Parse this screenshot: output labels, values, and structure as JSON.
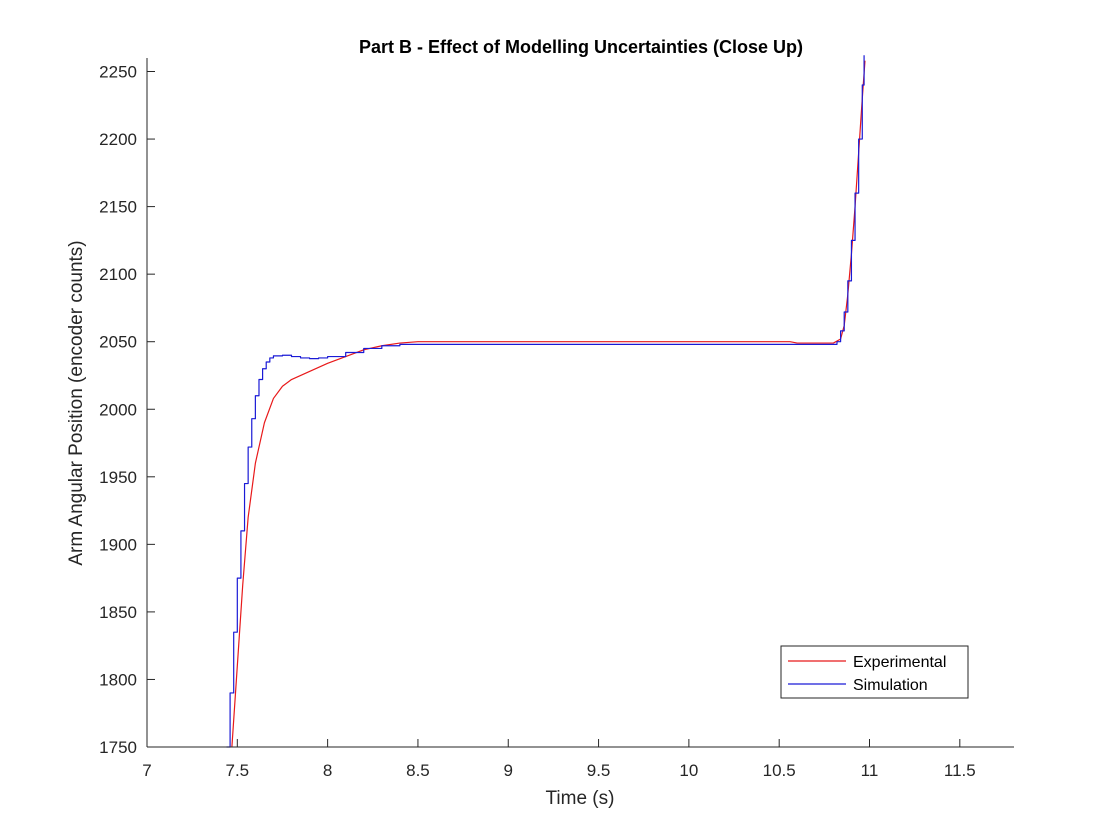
{
  "chart_data": {
    "type": "line",
    "title": "Part B - Effect of Modelling Uncertainties (Close Up)",
    "xlabel": "Time (s)",
    "ylabel": "Arm Angular Position (encoder counts)",
    "xlim": [
      7,
      11.8
    ],
    "ylim": [
      1750,
      2260
    ],
    "xticks": [
      7,
      7.5,
      8,
      8.5,
      9,
      9.5,
      10,
      10.5,
      11,
      11.5
    ],
    "xtick_labels": [
      "7",
      "7.5",
      "8",
      "8.5",
      "9",
      "9.5",
      "10",
      "10.5",
      "11",
      "11.5"
    ],
    "yticks": [
      1750,
      1800,
      1850,
      1900,
      1950,
      2000,
      2050,
      2100,
      2150,
      2200,
      2250
    ],
    "ytick_labels": [
      "1750",
      "1800",
      "1850",
      "1900",
      "1950",
      "2000",
      "2050",
      "2100",
      "2150",
      "2200",
      "2250"
    ],
    "grid": false,
    "legend_position": "bottom-right",
    "series": [
      {
        "name": "Experimental",
        "color": "#e8191a",
        "step": false,
        "points": [
          [
            7.47,
            1750
          ],
          [
            7.5,
            1810
          ],
          [
            7.53,
            1870
          ],
          [
            7.56,
            1920
          ],
          [
            7.6,
            1960
          ],
          [
            7.65,
            1990
          ],
          [
            7.7,
            2008
          ],
          [
            7.75,
            2017
          ],
          [
            7.8,
            2022
          ],
          [
            7.9,
            2028
          ],
          [
            8.0,
            2034
          ],
          [
            8.1,
            2039
          ],
          [
            8.2,
            2044
          ],
          [
            8.3,
            2047
          ],
          [
            8.4,
            2049
          ],
          [
            8.5,
            2050
          ],
          [
            9.0,
            2050
          ],
          [
            9.5,
            2050
          ],
          [
            10.0,
            2050
          ],
          [
            10.5,
            2050
          ],
          [
            10.56,
            2050
          ],
          [
            10.6,
            2049
          ],
          [
            10.8,
            2049
          ],
          [
            10.84,
            2052
          ],
          [
            10.86,
            2062
          ],
          [
            10.88,
            2085
          ],
          [
            10.9,
            2115
          ],
          [
            10.92,
            2150
          ],
          [
            10.94,
            2190
          ],
          [
            10.96,
            2230
          ],
          [
            10.975,
            2258
          ]
        ]
      },
      {
        "name": "Simulation",
        "color": "#1a1ad6",
        "step": true,
        "points": [
          [
            7.44,
            1750
          ],
          [
            7.46,
            1790
          ],
          [
            7.48,
            1835
          ],
          [
            7.5,
            1875
          ],
          [
            7.52,
            1910
          ],
          [
            7.54,
            1945
          ],
          [
            7.56,
            1972
          ],
          [
            7.58,
            1993
          ],
          [
            7.6,
            2010
          ],
          [
            7.62,
            2022
          ],
          [
            7.64,
            2030
          ],
          [
            7.66,
            2035
          ],
          [
            7.68,
            2038
          ],
          [
            7.7,
            2039.5
          ],
          [
            7.75,
            2040
          ],
          [
            7.8,
            2039
          ],
          [
            7.85,
            2038
          ],
          [
            7.9,
            2037.5
          ],
          [
            7.95,
            2038
          ],
          [
            8.0,
            2039
          ],
          [
            8.1,
            2042
          ],
          [
            8.2,
            2045
          ],
          [
            8.3,
            2047
          ],
          [
            8.4,
            2048
          ],
          [
            8.5,
            2048
          ],
          [
            9.0,
            2048
          ],
          [
            10.0,
            2048
          ],
          [
            10.8,
            2048
          ],
          [
            10.82,
            2050
          ],
          [
            10.84,
            2058
          ],
          [
            10.86,
            2072
          ],
          [
            10.88,
            2095
          ],
          [
            10.9,
            2125
          ],
          [
            10.92,
            2160
          ],
          [
            10.94,
            2200
          ],
          [
            10.96,
            2240
          ],
          [
            10.97,
            2262
          ]
        ]
      }
    ]
  }
}
